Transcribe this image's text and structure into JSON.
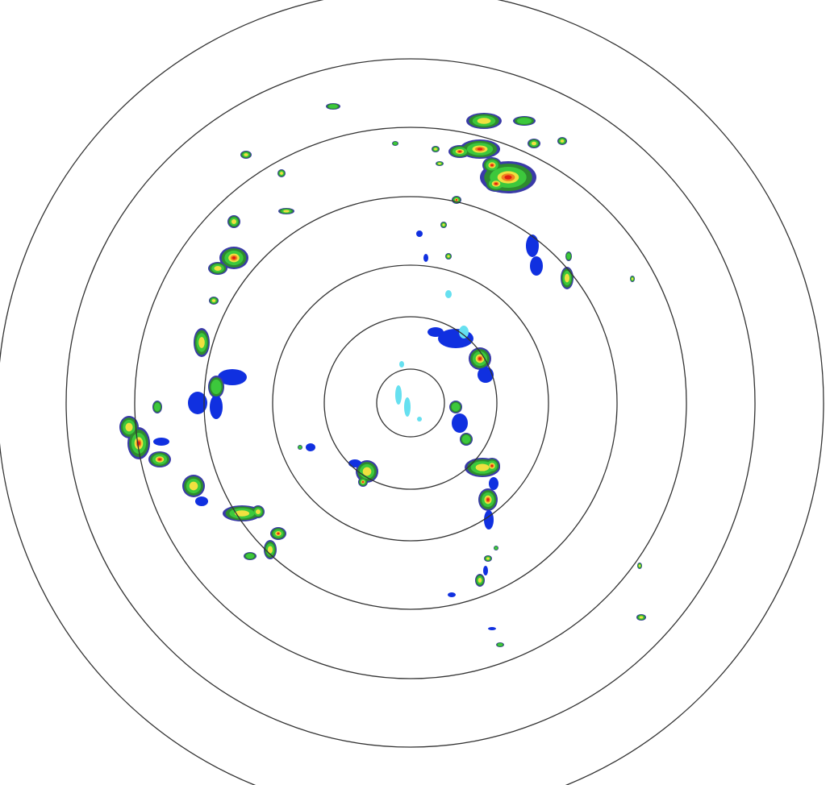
{
  "radar": {
    "range_ring_count": 7,
    "ring_color": "#333333",
    "background": "#ffffff",
    "reflectivity_colors": {
      "light_cyan": "#66e0f0",
      "blue": "#1030e0",
      "dark_blue": "#3a3aa8",
      "dark_green": "#2e8a2e",
      "green": "#3cc83c",
      "yellow": "#f0e040",
      "orange": "#f08020",
      "red": "#e02010"
    }
  }
}
